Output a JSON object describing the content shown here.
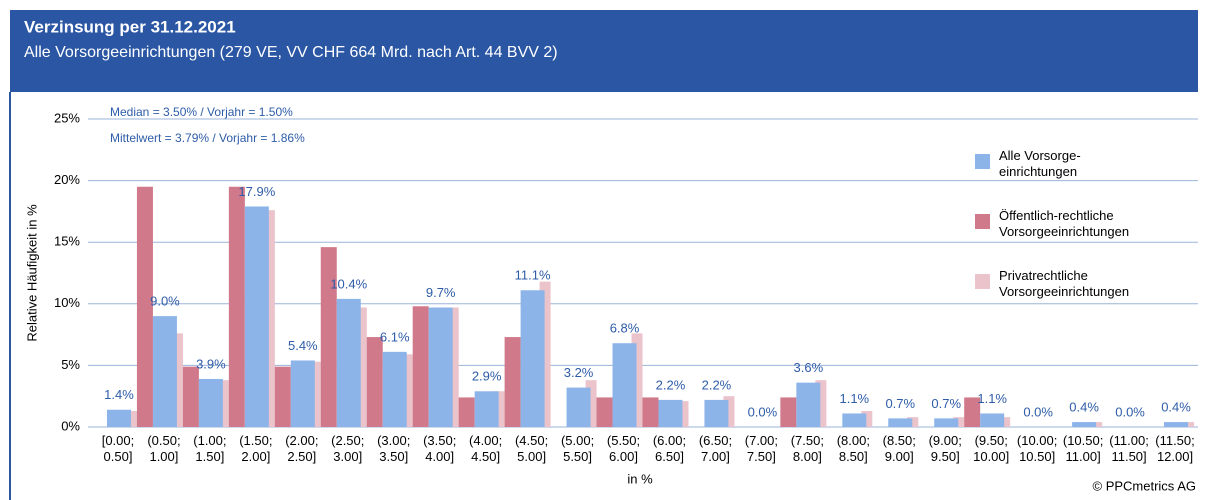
{
  "chart_data": {
    "type": "bar",
    "title": "Verzinsung per 31.12.2021",
    "subtitle": "Alle Vorsorgeeinrichtungen (279 VE, VV CHF 664 Mrd. nach Art. 44 BVV 2)",
    "annotations": [
      "Median = 3.50% / Vorjahr = 1.50%",
      "Mittelwert = 3.79% / Vorjahr = 1.86%"
    ],
    "y_label": "Relative Häufigkeit in %",
    "x_label": "in %",
    "source": "© PPCmetrics AG",
    "categories": [
      "[0.00; 0.50]",
      "(0.50; 1.00]",
      "(1.00; 1.50]",
      "(1.50; 2.00]",
      "(2.00; 2.50]",
      "(2.50; 3.00]",
      "(3.00; 3.50]",
      "(3.50; 4.00]",
      "(4.00; 4.50]",
      "(4.50; 5.00]",
      "(5.00; 5.50]",
      "(5.50; 6.00]",
      "(6.00; 6.50]",
      "(6.50; 7.00]",
      "(7.00; 7.50]",
      "(7.50; 8.00]",
      "(8.00; 8.50]",
      "(8.50; 9.00]",
      "(9.00; 9.50]",
      "(9.50; 10.00]",
      "(10.00; 10.50]",
      "(10.50; 11.00]",
      "(11.00; 11.50]",
      "(11.50; 12.00]"
    ],
    "series": [
      {
        "name": "Alle Vorsorge-einrichtungen",
        "color": "#8db4e8",
        "values": [
          1.4,
          9.0,
          3.9,
          17.9,
          5.4,
          10.4,
          6.1,
          9.7,
          2.9,
          11.1,
          3.2,
          6.8,
          2.2,
          2.2,
          0.0,
          3.6,
          1.1,
          0.7,
          0.7,
          1.1,
          0.0,
          0.4,
          0.0,
          0.4
        ],
        "value_labels": [
          "1.4%",
          "9.0%",
          "3.9%",
          "17.9%",
          "5.4%",
          "10.4%",
          "6.1%",
          "9.7%",
          "2.9%",
          "11.1%",
          "3.2%",
          "6.8%",
          "2.2%",
          "2.2%",
          "0.0%",
          "3.6%",
          "1.1%",
          "0.7%",
          "0.7%",
          "1.1%",
          "0.0%",
          "0.4%",
          "0.0%",
          "0.4%"
        ]
      },
      {
        "name": "Öffentlich-rechtliche Vorsorgeeinrichtungen",
        "color": "#d0798a",
        "values": [
          0,
          19.5,
          4.9,
          19.5,
          4.9,
          14.6,
          7.3,
          9.8,
          2.4,
          7.3,
          0,
          2.4,
          2.4,
          0,
          0,
          2.4,
          0,
          0,
          0,
          2.4,
          0,
          0,
          0,
          0
        ]
      },
      {
        "name": "Privatrechtliche Vorsorgeeinrichtungen",
        "color": "#ebc3cb",
        "values": [
          1.3,
          7.6,
          3.8,
          17.6,
          5.3,
          9.7,
          5.9,
          9.7,
          2.9,
          11.8,
          3.8,
          7.6,
          2.1,
          2.5,
          0,
          3.8,
          1.3,
          0.8,
          0.8,
          0.8,
          0,
          0.4,
          0,
          0.4
        ]
      }
    ],
    "ylim": [
      0,
      25
    ],
    "yticks": [
      {
        "value": 0,
        "label": "0%"
      },
      {
        "value": 5,
        "label": "5%"
      },
      {
        "value": 10,
        "label": "10%"
      },
      {
        "value": 15,
        "label": "15%"
      },
      {
        "value": 20,
        "label": "20%"
      },
      {
        "value": 25,
        "label": "25%"
      }
    ],
    "grid": true
  }
}
